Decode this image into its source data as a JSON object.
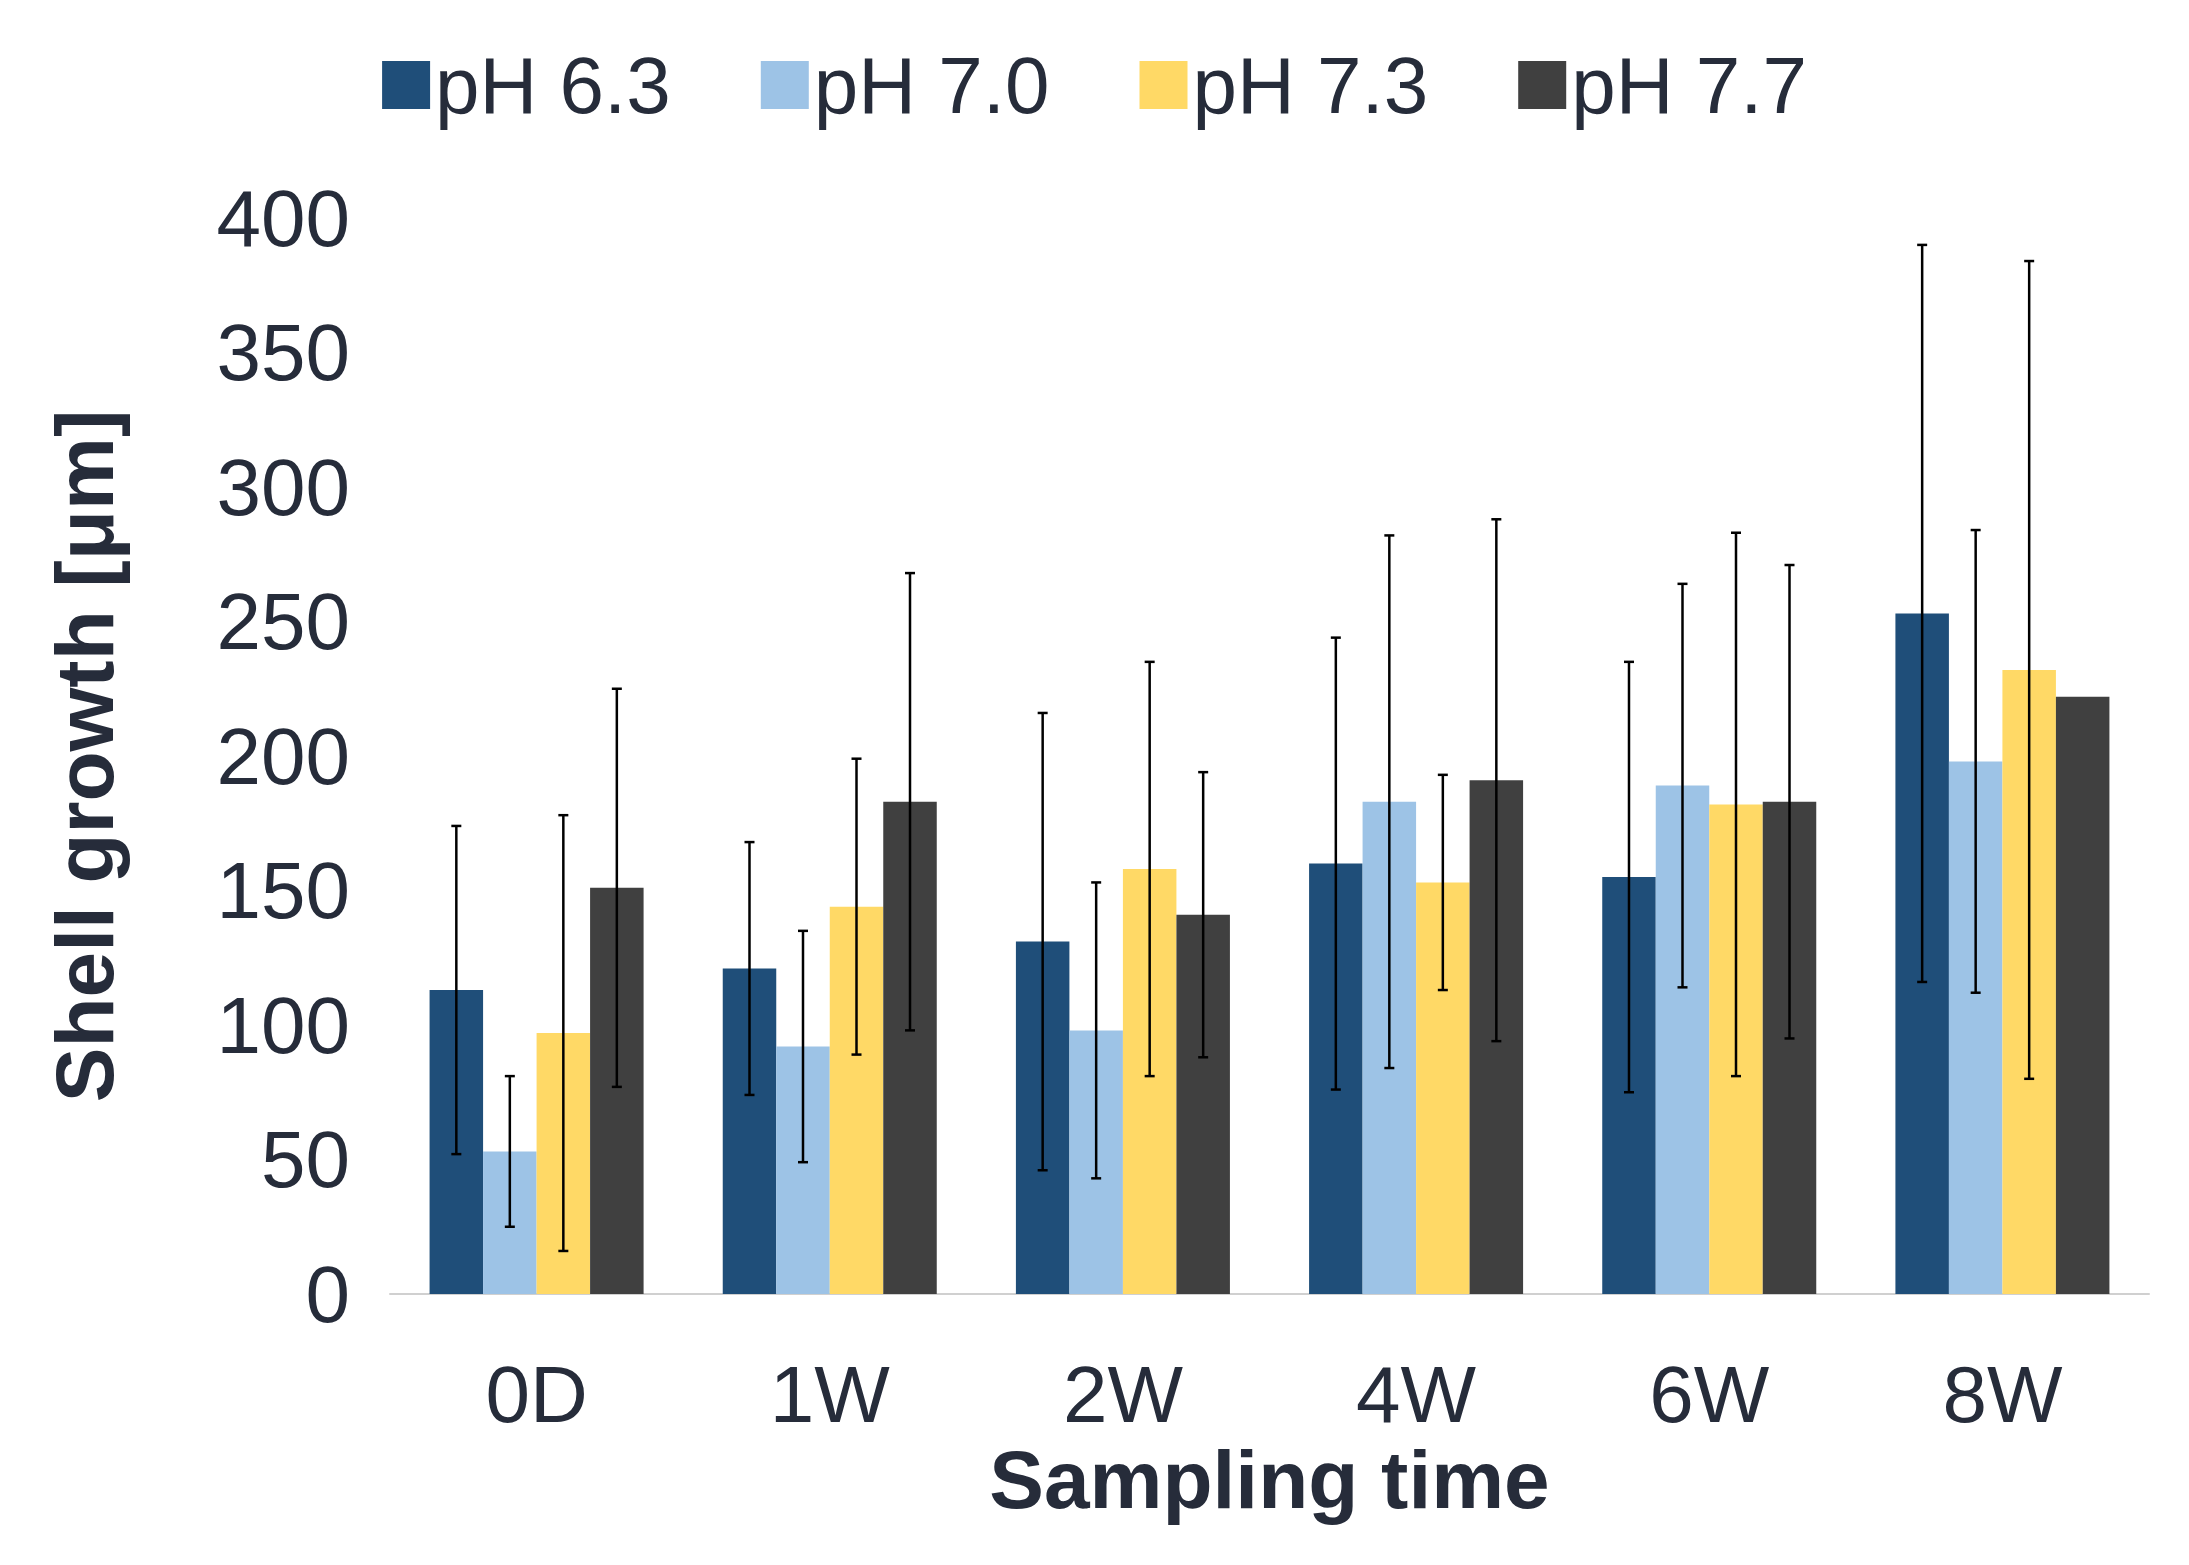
{
  "chart_data": {
    "type": "bar",
    "xlabel": "Sampling time",
    "ylabel": "Shell growth [μm]",
    "categories": [
      "0D",
      "1W",
      "2W",
      "4W",
      "6W",
      "8W"
    ],
    "series": [
      {
        "name": "pH 6.3",
        "color": "#1f4e79",
        "values": [
          113,
          121,
          131,
          160,
          155,
          253
        ],
        "errors": [
          61,
          47,
          85,
          84,
          80,
          137
        ]
      },
      {
        "name": "pH 7.0",
        "color": "#9dc3e6",
        "values": [
          53,
          92,
          98,
          183,
          189,
          198
        ],
        "errors": [
          28,
          43,
          55,
          99,
          75,
          86
        ]
      },
      {
        "name": "pH 7.3",
        "color": "#ffd966",
        "values": [
          97,
          144,
          158,
          153,
          182,
          232
        ],
        "errors": [
          81,
          55,
          77,
          40,
          101,
          152
        ]
      },
      {
        "name": "pH 7.7",
        "color": "#404040",
        "values": [
          151,
          183,
          141,
          191,
          183,
          222
        ],
        "errors": [
          74,
          85,
          53,
          97,
          88,
          null
        ]
      }
    ],
    "ylim": [
      0,
      400
    ],
    "yticks": [
      0,
      50,
      100,
      150,
      200,
      250,
      300,
      350,
      400
    ],
    "grid": false,
    "legend": "top"
  }
}
